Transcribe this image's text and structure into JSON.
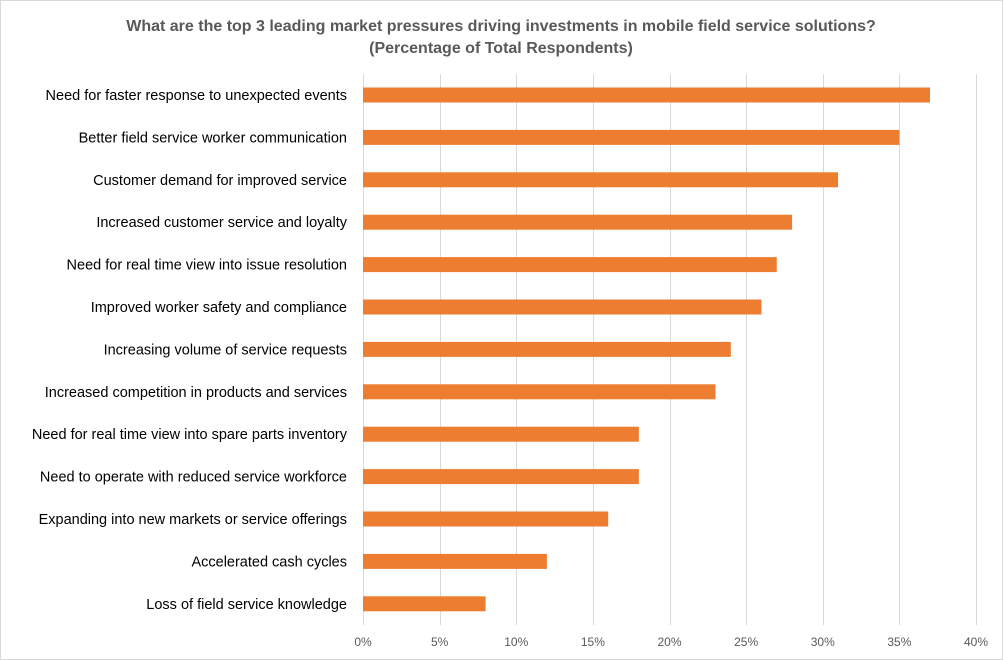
{
  "chart_data": {
    "type": "bar",
    "orientation": "horizontal",
    "title": "What are the top 3 leading market pressures driving investments in mobile field service solutions?",
    "subtitle": "(Percentage of Total Respondents)",
    "categories": [
      "Need for faster response to unexpected events",
      "Better field service worker communication",
      "Customer demand for improved service",
      "Increased customer service and loyalty",
      "Need for real time view into issue resolution",
      "Improved worker safety and compliance",
      "Increasing volume of service requests",
      "Increased competition in products and services",
      "Need for real time view into spare parts inventory",
      "Need to operate with reduced service workforce",
      "Expanding into new markets or service offerings",
      "Accelerated cash cycles",
      "Loss of field service knowledge"
    ],
    "values": [
      37,
      35,
      31,
      28,
      27,
      26,
      24,
      23,
      18,
      18,
      16,
      12,
      8
    ],
    "xlim": [
      0,
      40
    ],
    "x_ticks": [
      "0%",
      "5%",
      "10%",
      "15%",
      "20%",
      "25%",
      "30%",
      "35%",
      "40%"
    ],
    "grid": "vertical",
    "legend": "none",
    "bar_color": "#ED7D31"
  }
}
